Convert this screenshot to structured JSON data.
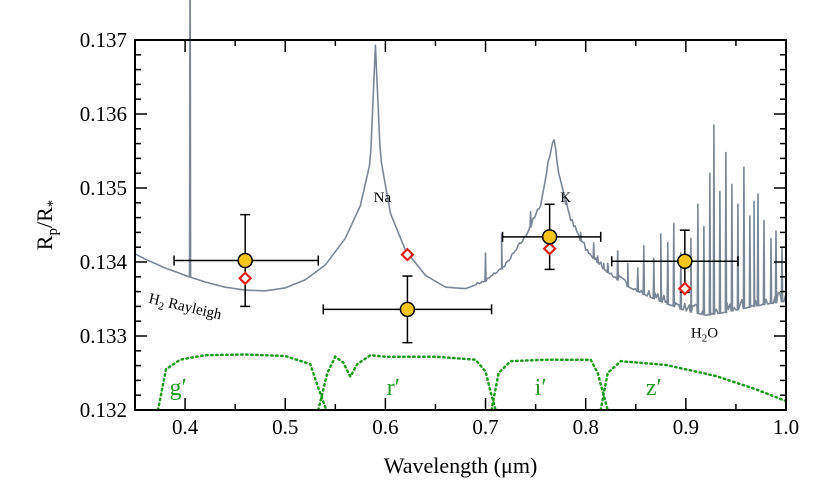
{
  "chart_data": {
    "type": "scatter",
    "title": "",
    "xlabel": "Wavelength (μm)",
    "ylabel_main": "R",
    "ylabel_sub1": "p",
    "ylabel_mid": "/R",
    "ylabel_sub2": "*",
    "xlim": [
      0.35,
      1.0
    ],
    "ylim": [
      0.132,
      0.137
    ],
    "x_ticks": [
      0.4,
      0.5,
      0.6,
      0.7,
      0.8,
      0.9,
      1.0
    ],
    "x_tick_labels": [
      "0.4",
      "0.5",
      "0.6",
      "0.7",
      "0.8",
      "0.9",
      "1.0"
    ],
    "y_ticks": [
      0.132,
      0.133,
      0.134,
      0.135,
      0.136,
      0.137
    ],
    "y_tick_labels": [
      "0.132",
      "0.133",
      "0.134",
      "0.135",
      "0.136",
      "0.137"
    ],
    "grid": false,
    "colors": {
      "model": "#7b8797",
      "observed_fill": "#f5c518",
      "model_binned": "#e0201a",
      "bands": "#1f9a1f"
    },
    "observed": [
      {
        "x": 0.46,
        "y": 0.13402,
        "xerr_low": 0.389,
        "xerr_high": 0.533,
        "yerr": 0.00062
      },
      {
        "x": 0.622,
        "y": 0.13336,
        "xerr_low": 0.538,
        "xerr_high": 0.706,
        "yerr": 0.00045
      },
      {
        "x": 0.764,
        "y": 0.13434,
        "xerr_low": 0.717,
        "xerr_high": 0.815,
        "yerr": 0.00044
      },
      {
        "x": 0.899,
        "y": 0.13401,
        "xerr_low": 0.826,
        "xerr_high": 0.952,
        "yerr": 0.00042
      }
    ],
    "model_binned": [
      {
        "x": 0.46,
        "y": 0.13378
      },
      {
        "x": 0.622,
        "y": 0.1341
      },
      {
        "x": 0.764,
        "y": 0.13418
      },
      {
        "x": 0.899,
        "y": 0.13364
      }
    ],
    "annotations": [
      {
        "text": "Na",
        "x": 0.597,
        "y": 0.13481
      },
      {
        "text": "K",
        "x": 0.78,
        "y": 0.13481
      },
      {
        "text": "H",
        "sub": "2",
        "rest": " Rayleigh",
        "x": 0.363,
        "y": 0.13345,
        "rotate": 13
      },
      {
        "text": "H",
        "sub": "2",
        "rest": "O",
        "x": 0.905,
        "y": 0.13298
      }
    ],
    "bands": [
      {
        "name": "g′",
        "label_x": 0.393,
        "label_y": 0.1322,
        "points": [
          [
            0.373,
            0.132
          ],
          [
            0.381,
            0.13255
          ],
          [
            0.395,
            0.13268
          ],
          [
            0.42,
            0.13274
          ],
          [
            0.46,
            0.13275
          ],
          [
            0.5,
            0.13273
          ],
          [
            0.525,
            0.13262
          ],
          [
            0.533,
            0.1323
          ],
          [
            0.541,
            0.132
          ]
        ]
      },
      {
        "name": "r′",
        "label_x": 0.608,
        "label_y": 0.1322,
        "points": [
          [
            0.533,
            0.132
          ],
          [
            0.542,
            0.1325
          ],
          [
            0.55,
            0.13272
          ],
          [
            0.558,
            0.13264
          ],
          [
            0.565,
            0.13245
          ],
          [
            0.572,
            0.13262
          ],
          [
            0.585,
            0.13274
          ],
          [
            0.6,
            0.13272
          ],
          [
            0.65,
            0.13272
          ],
          [
            0.69,
            0.13268
          ],
          [
            0.7,
            0.13252
          ],
          [
            0.706,
            0.1322
          ],
          [
            0.71,
            0.132
          ]
        ]
      },
      {
        "name": "i′",
        "label_x": 0.755,
        "label_y": 0.1322,
        "points": [
          [
            0.706,
            0.132
          ],
          [
            0.713,
            0.1325
          ],
          [
            0.725,
            0.13266
          ],
          [
            0.76,
            0.13268
          ],
          [
            0.805,
            0.13268
          ],
          [
            0.812,
            0.1325
          ],
          [
            0.818,
            0.1322
          ],
          [
            0.822,
            0.132
          ]
        ]
      },
      {
        "name": "z′",
        "label_x": 0.868,
        "label_y": 0.1322,
        "points": [
          [
            0.815,
            0.132
          ],
          [
            0.822,
            0.1325
          ],
          [
            0.835,
            0.13266
          ],
          [
            0.88,
            0.13261
          ],
          [
            0.93,
            0.13246
          ],
          [
            0.97,
            0.13228
          ],
          [
            1.0,
            0.13212
          ]
        ]
      }
    ],
    "model_spectrum": {
      "continuum": [
        [
          0.35,
          0.13411
        ],
        [
          0.36,
          0.13404
        ],
        [
          0.38,
          0.13392
        ],
        [
          0.4,
          0.13382
        ],
        [
          0.42,
          0.13373
        ],
        [
          0.44,
          0.13366
        ],
        [
          0.46,
          0.13362
        ],
        [
          0.48,
          0.13361
        ],
        [
          0.5,
          0.13365
        ],
        [
          0.52,
          0.13376
        ],
        [
          0.54,
          0.13396
        ],
        [
          0.56,
          0.13432
        ],
        [
          0.575,
          0.13476
        ],
        [
          0.585,
          0.13536
        ],
        [
          0.59,
          0.13693
        ],
        [
          0.595,
          0.13542
        ],
        [
          0.605,
          0.13466
        ],
        [
          0.62,
          0.13416
        ],
        [
          0.64,
          0.13382
        ],
        [
          0.66,
          0.13366
        ],
        [
          0.68,
          0.13364
        ],
        [
          0.7,
          0.13374
        ],
        [
          0.72,
          0.13395
        ],
        [
          0.74,
          0.13434
        ],
        [
          0.755,
          0.13476
        ],
        [
          0.763,
          0.13535
        ],
        [
          0.768,
          0.13568
        ],
        [
          0.773,
          0.1352
        ],
        [
          0.785,
          0.13456
        ],
        [
          0.8,
          0.13416
        ],
        [
          0.82,
          0.13388
        ],
        [
          0.84,
          0.13368
        ],
        [
          0.86,
          0.13355
        ],
        [
          0.88,
          0.13344
        ],
        [
          0.9,
          0.13334
        ],
        [
          0.92,
          0.13328
        ],
        [
          0.94,
          0.13332
        ],
        [
          0.96,
          0.13338
        ],
        [
          0.98,
          0.13343
        ],
        [
          1.0,
          0.13347
        ]
      ],
      "lines": [
        [
          0.405,
          0.13858
        ],
        [
          0.7,
          0.13412
        ],
        [
          0.716,
          0.13438
        ],
        [
          0.745,
          0.13468
        ],
        [
          0.78,
          0.13478
        ],
        [
          0.795,
          0.1344
        ],
        [
          0.808,
          0.13426
        ],
        [
          0.812,
          0.13408
        ],
        [
          0.818,
          0.13398
        ],
        [
          0.822,
          0.13398
        ],
        [
          0.832,
          0.13415
        ],
        [
          0.842,
          0.13398
        ],
        [
          0.852,
          0.13392
        ],
        [
          0.858,
          0.13422
        ],
        [
          0.868,
          0.13405
        ],
        [
          0.875,
          0.13438
        ],
        [
          0.882,
          0.13426
        ],
        [
          0.888,
          0.13452
        ],
        [
          0.895,
          0.13412
        ],
        [
          0.905,
          0.13432
        ],
        [
          0.912,
          0.13478
        ],
        [
          0.918,
          0.13448
        ],
        [
          0.924,
          0.1352
        ],
        [
          0.928,
          0.13585
        ],
        [
          0.934,
          0.13495
        ],
        [
          0.94,
          0.13548
        ],
        [
          0.946,
          0.13505
        ],
        [
          0.952,
          0.13478
        ],
        [
          0.958,
          0.13528
        ],
        [
          0.964,
          0.13462
        ],
        [
          0.968,
          0.13482
        ],
        [
          0.972,
          0.13492
        ],
        [
          0.978,
          0.13456
        ],
        [
          0.985,
          0.13432
        ],
        [
          0.99,
          0.13442
        ],
        [
          0.996,
          0.13418
        ]
      ],
      "noise_start": 0.69
    }
  }
}
